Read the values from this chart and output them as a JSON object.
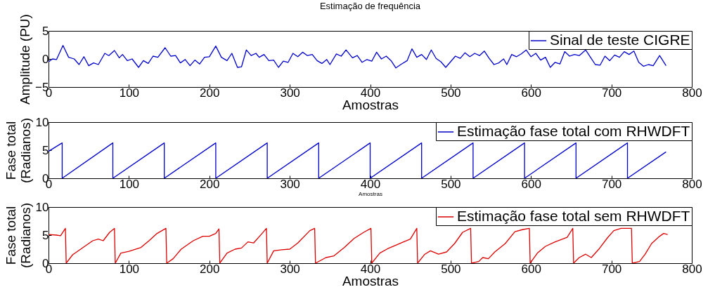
{
  "chart_data": [
    {
      "type": "line",
      "title": "Estimação de frequência",
      "xlabel": "Amostras",
      "ylabel": "Amplitude (PU)",
      "xlim": [
        0,
        800
      ],
      "xticks": [
        0,
        100,
        200,
        300,
        400,
        500,
        600,
        700,
        800
      ],
      "ylim": [
        -5,
        5
      ],
      "yticks": [
        -5,
        0,
        5
      ],
      "legend": "top right",
      "grid": false,
      "series": [
        {
          "name": "Sinal de teste CIGRE",
          "color": "#0000cc",
          "x": [
            0,
            5,
            10,
            18,
            25,
            32,
            38,
            44,
            50,
            56,
            62,
            70,
            75,
            82,
            88,
            92,
            98,
            104,
            112,
            118,
            124,
            130,
            136,
            145,
            152,
            158,
            164,
            170,
            176,
            182,
            188,
            194,
            200,
            208,
            215,
            222,
            228,
            235,
            240,
            246,
            252,
            258,
            262,
            268,
            274,
            280,
            286,
            292,
            298,
            304,
            310,
            316,
            322,
            328,
            334,
            340,
            346,
            350,
            358,
            364,
            370,
            378,
            384,
            390,
            396,
            402,
            408,
            414,
            420,
            426,
            432,
            438,
            446,
            452,
            458,
            464,
            470,
            476,
            482,
            488,
            494,
            500,
            506,
            512,
            518,
            524,
            530,
            536,
            542,
            548,
            554,
            560,
            566,
            570,
            576,
            582,
            588,
            594,
            600,
            606,
            612,
            618,
            624,
            630,
            636,
            642,
            648,
            654,
            660,
            668,
            674,
            680,
            686,
            692,
            698,
            704,
            710,
            716,
            722,
            728,
            734,
            740,
            746,
            752,
            760,
            768
          ],
          "values": [
            -0.5,
            0,
            -0.1,
            2.4,
            0.3,
            0,
            -1,
            0.4,
            -1.2,
            -0.7,
            -1,
            1,
            0.6,
            1.5,
            0.2,
            0.8,
            -0.3,
            0,
            -1.5,
            -0.3,
            -0.8,
            0.5,
            0.3,
            2,
            0.5,
            0.6,
            -0.7,
            -0.1,
            -1.2,
            -0.2,
            -0.9,
            0.3,
            0.4,
            2.3,
            0.3,
            -0.3,
            1,
            -1.5,
            -1.4,
            1.6,
            0.6,
            1,
            0.3,
            0.8,
            -0.3,
            -0.2,
            -1.5,
            -0.4,
            -0.6,
            1,
            0.4,
            1.2,
            0.6,
            0.8,
            -0.3,
            -0.8,
            -0.1,
            -1,
            0.9,
            0.5,
            1.6,
            0.2,
            0.6,
            -0.6,
            -0.1,
            -0.4,
            1.2,
            0,
            0.5,
            -0.3,
            -1.6,
            -1,
            -0.3,
            1.8,
            0.3,
            0.8,
            -0.1,
            1.6,
            0.1,
            -0.5,
            -1.5,
            -0.5,
            0.5,
            0.1,
            1.1,
            0.4,
            1,
            0.6,
            1.4,
            0.1,
            -1,
            -0.7,
            0,
            -1,
            0.8,
            0.4,
            0.9,
            1.6,
            0.4,
            1,
            -0.2,
            0.3,
            -1.5,
            -0.6,
            -0.9,
            1.3,
            0.5,
            0.8,
            0.6,
            1.6,
            0.3,
            -1,
            -1.1,
            0.5,
            -0.3,
            0.7,
            0.3,
            1.3,
            0.8,
            1.4,
            -0.6,
            -1.3,
            -1,
            -1.2,
            0.6,
            -1.2
          ]
        }
      ]
    },
    {
      "type": "line",
      "xlabel": "Amostras",
      "ylabel": "Fase total\n(Radianos)",
      "xlim": [
        0,
        800
      ],
      "xticks": [
        0,
        100,
        200,
        300,
        400,
        500,
        600,
        700,
        800
      ],
      "ylim": [
        0,
        10
      ],
      "yticks": [
        0,
        5,
        10
      ],
      "legend": "top right",
      "grid": false,
      "series": [
        {
          "name": "Estimação fase total com RHWDFT",
          "color": "#0000cc",
          "x": [
            0,
            17,
            17,
            80,
            80,
            144,
            144,
            208,
            208,
            272,
            272,
            336,
            336,
            400,
            400,
            464,
            464,
            528,
            528,
            592,
            592,
            656,
            656,
            720,
            720,
            768
          ],
          "values": [
            4.8,
            6.3,
            0,
            6.3,
            0,
            6.3,
            0,
            6.3,
            0,
            6.3,
            0,
            6.3,
            0,
            6.3,
            0,
            6.3,
            0,
            6.3,
            0,
            6.3,
            0,
            6.3,
            0,
            6.3,
            0,
            4.7
          ]
        }
      ]
    },
    {
      "type": "line",
      "xlabel": "Amostras",
      "ylabel": "Fase total\n(Radianos)",
      "xlim": [
        0,
        800
      ],
      "xticks": [
        0,
        100,
        200,
        300,
        400,
        500,
        600,
        700,
        800
      ],
      "ylim": [
        0,
        10
      ],
      "yticks": [
        0,
        5,
        10
      ],
      "legend": "top right",
      "grid": false,
      "series": [
        {
          "name": "Estimação fase total sem RHWDFT",
          "color": "#dd0000",
          "x": [
            0,
            10,
            15,
            21,
            22,
            30,
            45,
            55,
            62,
            68,
            76,
            82,
            83,
            90,
            100,
            115,
            125,
            135,
            146,
            147,
            155,
            165,
            180,
            192,
            200,
            208,
            212,
            213,
            222,
            232,
            240,
            248,
            255,
            265,
            271,
            272,
            280,
            290,
            300,
            310,
            325,
            331,
            332,
            345,
            355,
            368,
            380,
            392,
            401,
            402,
            412,
            422,
            432,
            440,
            450,
            458,
            459,
            468,
            475,
            485,
            495,
            505,
            515,
            525,
            526,
            535,
            540,
            547,
            555,
            568,
            580,
            590,
            598,
            599,
            608,
            618,
            630,
            645,
            652,
            653,
            660,
            668,
            675,
            685,
            695,
            703,
            712,
            720,
            725,
            726,
            735,
            742,
            750,
            760,
            765,
            770
          ],
          "values": [
            5.1,
            5,
            4.9,
            6.2,
            0,
            1.5,
            3,
            4,
            4.3,
            4,
            5.5,
            6.2,
            0,
            1.8,
            2.1,
            2.8,
            4,
            5.3,
            6.2,
            0,
            0.8,
            2.5,
            4,
            4.8,
            4.8,
            5.3,
            6.1,
            0,
            1.8,
            2.5,
            2.7,
            3.8,
            3.6,
            5.2,
            6.2,
            0,
            2.2,
            2.4,
            2.5,
            3.6,
            5.8,
            6.2,
            0,
            1,
            1.3,
            2.8,
            4.4,
            5.5,
            6.2,
            0,
            1.8,
            2.6,
            3.2,
            3.7,
            4.3,
            6.2,
            0,
            1.6,
            2.2,
            1.6,
            2,
            3.5,
            5.5,
            6.2,
            0,
            0.3,
            1,
            0.8,
            2,
            3.5,
            5.6,
            6,
            6.2,
            0,
            1.8,
            3,
            3.8,
            4.6,
            6.2,
            0,
            1,
            1.6,
            1,
            2.6,
            4.5,
            5.8,
            6.2,
            6.2,
            6.2,
            0,
            0.3,
            1.6,
            3.5,
            4.8,
            5.3,
            5.1
          ]
        }
      ]
    }
  ]
}
